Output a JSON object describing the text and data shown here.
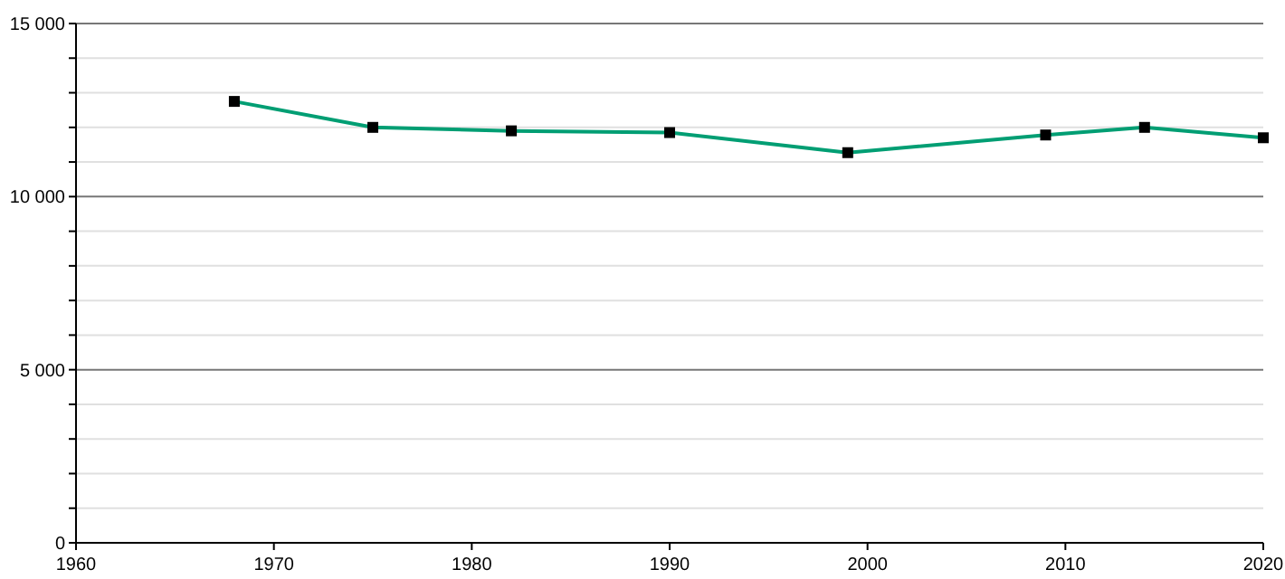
{
  "chart_data": {
    "type": "line",
    "x": [
      1968,
      1975,
      1982,
      1990,
      1999,
      2009,
      2014,
      2020
    ],
    "series": [
      {
        "color": "#009e73",
        "values": [
          12750,
          12000,
          11900,
          11850,
          11270,
          11780,
          12000,
          11700
        ]
      }
    ],
    "xlim": [
      1960,
      2020
    ],
    "xticks": [
      1960,
      1970,
      1980,
      1990,
      2000,
      2010,
      2020
    ],
    "ylim": [
      0,
      15000
    ],
    "yticks": [
      {
        "value": 0,
        "label": "0"
      },
      {
        "value": 1000,
        "label": null
      },
      {
        "value": 2000,
        "label": null
      },
      {
        "value": 3000,
        "label": null
      },
      {
        "value": 4000,
        "label": null
      },
      {
        "value": 5000,
        "label": "5 000"
      },
      {
        "value": 6000,
        "label": null
      },
      {
        "value": 7000,
        "label": null
      },
      {
        "value": 8000,
        "label": null
      },
      {
        "value": 9000,
        "label": null
      },
      {
        "value": 10000,
        "label": "10 000"
      },
      {
        "value": 11000,
        "label": null
      },
      {
        "value": 12000,
        "label": null
      },
      {
        "value": 13000,
        "label": null
      },
      {
        "value": 14000,
        "label": null
      },
      {
        "value": 15000,
        "label": "15 000"
      }
    ],
    "grid": "y",
    "marker": "square",
    "line_style": "solid"
  }
}
